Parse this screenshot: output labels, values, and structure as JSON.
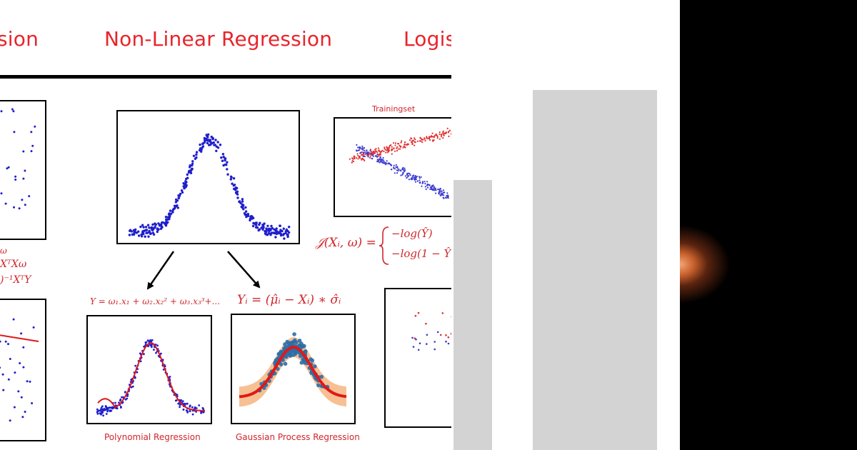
{
  "headers": {
    "linear_partial": "sion",
    "nonlinear": "Non-Linear Regression",
    "logistic_partial": "Logis"
  },
  "equations": {
    "linear_line1": "ω",
    "linear_line2": "XᵀXω",
    "linear_line3": ")⁻¹XᵀY",
    "polynomial": "Y = ω₁.x₁ + ω₂.x₂² + ω₃.x₃³+...",
    "gaussian": "Yᵢ = (μ̂ᵢ − Xᵢ) ∗ σ̂ᵢ",
    "logistic_lhs": "𝒥(Xᵢ, ω) =",
    "logistic_case1": "−log(Ŷ)",
    "logistic_case2": "−log(1 − Ŷ"
  },
  "captions": {
    "trainingset": "Trainingset",
    "polynomial": "Polynomial Regression",
    "gaussian": "Gaussian Process Regression"
  },
  "colors": {
    "header_red": "#e8242b",
    "points_blue": "#1f1fcc",
    "curve_red": "#e01818",
    "gp_blue": "#2b6fa8",
    "gp_band": "#f5b078",
    "train_red": "#e03030",
    "train_blue": "#3a3ad0"
  }
}
